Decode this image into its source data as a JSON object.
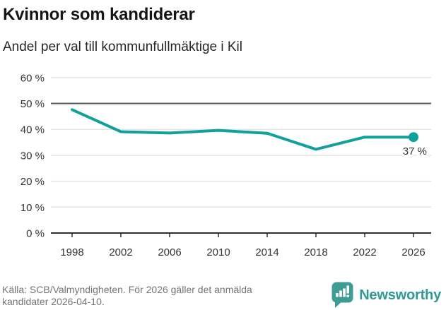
{
  "chart_data": {
    "type": "line",
    "title": "Kvinnor som kandiderar",
    "subtitle": "Andel per val till kommunfullmäktige i Kil",
    "x": [
      1998,
      2002,
      2006,
      2010,
      2014,
      2018,
      2022,
      2026
    ],
    "xticks": [
      "1998",
      "2002",
      "2006",
      "2010",
      "2014",
      "2018",
      "2022",
      "2026"
    ],
    "values": [
      47.6,
      39.1,
      38.6,
      39.6,
      38.5,
      32.3,
      37,
      37
    ],
    "yticks": [
      "0 %",
      "10 %",
      "20 %",
      "30 %",
      "40 %",
      "50 %",
      "60 %"
    ],
    "ylim": [
      0,
      60
    ],
    "grid": true,
    "legend": false,
    "reference_line": 50,
    "end_label": "37 %",
    "colors": {
      "line": "#12A19A",
      "grid": "#E4E4E4",
      "axis": "#2E2E2E",
      "reference": "#5C5C5C",
      "tick_text": "#333333"
    }
  },
  "footer": {
    "source_line1": "Källa: SCB/Valmyndigheten. För 2026 gäller det anmälda",
    "source_line2": "kandidater 2026-04-10."
  },
  "logo": {
    "text": "Newsworthy",
    "color": "#2F9A93",
    "icon_color": "#3E9C95"
  }
}
